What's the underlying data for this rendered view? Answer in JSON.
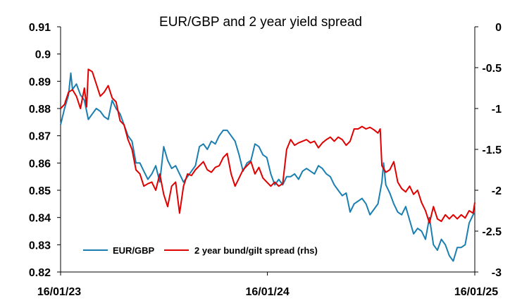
{
  "chart_data": {
    "type": "line",
    "title": "EUR/GBP and 2 year yield spread",
    "x_tick_labels": [
      "16/01/23",
      "16/01/24",
      "16/01/25"
    ],
    "x_range": [
      "2023-01-16",
      "2025-01-16"
    ],
    "y_left": {
      "min": 0.82,
      "max": 0.91,
      "ticks": [
        "0.82",
        "0.83",
        "0.84",
        "0.85",
        "0.86",
        "0.87",
        "0.88",
        "0.89",
        "0.9",
        "0.91"
      ]
    },
    "y_right": {
      "min": -3,
      "max": 0,
      "ticks": [
        "0",
        "-0.5",
        "-1",
        "-1.5",
        "-2",
        "-2.5",
        "-3"
      ]
    },
    "grid": false,
    "legend_position": "bottom-left",
    "series": [
      {
        "name": "EUR/GBP",
        "axis": "left",
        "color": "#1a7fb0",
        "points": [
          [
            "2023-01-16",
            0.874
          ],
          [
            "2023-01-23",
            0.88
          ],
          [
            "2023-01-30",
            0.885
          ],
          [
            "2023-02-03",
            0.893
          ],
          [
            "2023-02-06",
            0.887
          ],
          [
            "2023-02-13",
            0.889
          ],
          [
            "2023-02-20",
            0.885
          ],
          [
            "2023-02-27",
            0.883
          ],
          [
            "2023-03-06",
            0.876
          ],
          [
            "2023-03-13",
            0.878
          ],
          [
            "2023-03-20",
            0.88
          ],
          [
            "2023-03-27",
            0.879
          ],
          [
            "2023-04-03",
            0.877
          ],
          [
            "2023-04-10",
            0.876
          ],
          [
            "2023-04-17",
            0.883
          ],
          [
            "2023-04-24",
            0.88
          ],
          [
            "2023-05-01",
            0.878
          ],
          [
            "2023-05-08",
            0.874
          ],
          [
            "2023-05-15",
            0.87
          ],
          [
            "2023-05-22",
            0.868
          ],
          [
            "2023-05-29",
            0.86
          ],
          [
            "2023-06-05",
            0.86
          ],
          [
            "2023-06-12",
            0.857
          ],
          [
            "2023-06-19",
            0.854
          ],
          [
            "2023-06-26",
            0.856
          ],
          [
            "2023-07-03",
            0.859
          ],
          [
            "2023-07-10",
            0.853
          ],
          [
            "2023-07-17",
            0.866
          ],
          [
            "2023-07-24",
            0.861
          ],
          [
            "2023-07-31",
            0.858
          ],
          [
            "2023-08-07",
            0.859
          ],
          [
            "2023-08-14",
            0.856
          ],
          [
            "2023-08-21",
            0.853
          ],
          [
            "2023-08-28",
            0.855
          ],
          [
            "2023-09-04",
            0.857
          ],
          [
            "2023-09-11",
            0.859
          ],
          [
            "2023-09-18",
            0.866
          ],
          [
            "2023-09-25",
            0.867
          ],
          [
            "2023-10-02",
            0.865
          ],
          [
            "2023-10-09",
            0.868
          ],
          [
            "2023-10-16",
            0.867
          ],
          [
            "2023-10-23",
            0.87
          ],
          [
            "2023-10-30",
            0.872
          ],
          [
            "2023-11-06",
            0.872
          ],
          [
            "2023-11-13",
            0.87
          ],
          [
            "2023-11-20",
            0.868
          ],
          [
            "2023-11-27",
            0.863
          ],
          [
            "2023-12-04",
            0.857
          ],
          [
            "2023-12-11",
            0.86
          ],
          [
            "2023-12-18",
            0.861
          ],
          [
            "2023-12-25",
            0.867
          ],
          [
            "2024-01-01",
            0.866
          ],
          [
            "2024-01-08",
            0.863
          ],
          [
            "2024-01-15",
            0.862
          ],
          [
            "2024-01-22",
            0.856
          ],
          [
            "2024-01-29",
            0.852
          ],
          [
            "2024-02-05",
            0.854
          ],
          [
            "2024-02-12",
            0.852
          ],
          [
            "2024-02-19",
            0.855
          ],
          [
            "2024-02-26",
            0.855
          ],
          [
            "2024-03-04",
            0.856
          ],
          [
            "2024-03-11",
            0.854
          ],
          [
            "2024-03-18",
            0.857
          ],
          [
            "2024-03-25",
            0.858
          ],
          [
            "2024-04-01",
            0.857
          ],
          [
            "2024-04-08",
            0.856
          ],
          [
            "2024-04-15",
            0.859
          ],
          [
            "2024-04-22",
            0.858
          ],
          [
            "2024-04-29",
            0.856
          ],
          [
            "2024-05-06",
            0.855
          ],
          [
            "2024-05-13",
            0.852
          ],
          [
            "2024-05-20",
            0.85
          ],
          [
            "2024-05-27",
            0.848
          ],
          [
            "2024-06-03",
            0.849
          ],
          [
            "2024-06-10",
            0.842
          ],
          [
            "2024-06-17",
            0.845
          ],
          [
            "2024-06-24",
            0.846
          ],
          [
            "2024-07-01",
            0.847
          ],
          [
            "2024-07-08",
            0.845
          ],
          [
            "2024-07-15",
            0.841
          ],
          [
            "2024-07-22",
            0.843
          ],
          [
            "2024-07-29",
            0.845
          ],
          [
            "2024-08-05",
            0.853
          ],
          [
            "2024-08-08",
            0.86
          ],
          [
            "2024-08-12",
            0.852
          ],
          [
            "2024-08-19",
            0.849
          ],
          [
            "2024-08-26",
            0.845
          ],
          [
            "2024-09-02",
            0.842
          ],
          [
            "2024-09-09",
            0.841
          ],
          [
            "2024-09-16",
            0.844
          ],
          [
            "2024-09-23",
            0.839
          ],
          [
            "2024-09-30",
            0.834
          ],
          [
            "2024-10-07",
            0.836
          ],
          [
            "2024-10-14",
            0.835
          ],
          [
            "2024-10-21",
            0.832
          ],
          [
            "2024-10-28",
            0.84
          ],
          [
            "2024-11-04",
            0.83
          ],
          [
            "2024-11-11",
            0.828
          ],
          [
            "2024-11-18",
            0.832
          ],
          [
            "2024-11-25",
            0.83
          ],
          [
            "2024-12-02",
            0.826
          ],
          [
            "2024-12-09",
            0.824
          ],
          [
            "2024-12-16",
            0.829
          ],
          [
            "2024-12-23",
            0.829
          ],
          [
            "2024-12-30",
            0.83
          ],
          [
            "2025-01-06",
            0.838
          ],
          [
            "2025-01-13",
            0.841
          ],
          [
            "2025-01-16",
            0.842
          ]
        ]
      },
      {
        "name": "2 year bund/gilt spread (rhs)",
        "axis": "right",
        "color": "#e00000",
        "points": [
          [
            "2023-01-16",
            -1.0
          ],
          [
            "2023-01-23",
            -0.95
          ],
          [
            "2023-01-30",
            -0.8
          ],
          [
            "2023-02-06",
            -0.77
          ],
          [
            "2023-02-13",
            -0.85
          ],
          [
            "2023-02-20",
            -1.0
          ],
          [
            "2023-02-27",
            -0.75
          ],
          [
            "2023-03-03",
            -0.98
          ],
          [
            "2023-03-06",
            -0.52
          ],
          [
            "2023-03-13",
            -0.55
          ],
          [
            "2023-03-20",
            -0.7
          ],
          [
            "2023-03-27",
            -0.85
          ],
          [
            "2023-04-03",
            -0.8
          ],
          [
            "2023-04-10",
            -0.72
          ],
          [
            "2023-04-17",
            -0.87
          ],
          [
            "2023-04-24",
            -0.92
          ],
          [
            "2023-05-01",
            -1.15
          ],
          [
            "2023-05-08",
            -1.2
          ],
          [
            "2023-05-15",
            -1.38
          ],
          [
            "2023-05-22",
            -1.5
          ],
          [
            "2023-05-29",
            -1.75
          ],
          [
            "2023-06-05",
            -1.8
          ],
          [
            "2023-06-12",
            -1.95
          ],
          [
            "2023-06-19",
            -1.92
          ],
          [
            "2023-06-26",
            -1.9
          ],
          [
            "2023-07-03",
            -2.0
          ],
          [
            "2023-07-10",
            -1.8
          ],
          [
            "2023-07-17",
            -2.05
          ],
          [
            "2023-07-24",
            -2.2
          ],
          [
            "2023-07-31",
            -1.95
          ],
          [
            "2023-08-07",
            -1.9
          ],
          [
            "2023-08-14",
            -2.28
          ],
          [
            "2023-08-21",
            -1.95
          ],
          [
            "2023-08-28",
            -1.8
          ],
          [
            "2023-09-04",
            -1.82
          ],
          [
            "2023-09-11",
            -1.75
          ],
          [
            "2023-09-18",
            -1.7
          ],
          [
            "2023-09-25",
            -1.65
          ],
          [
            "2023-10-02",
            -1.75
          ],
          [
            "2023-10-09",
            -1.78
          ],
          [
            "2023-10-16",
            -1.72
          ],
          [
            "2023-10-23",
            -1.7
          ],
          [
            "2023-10-30",
            -1.6
          ],
          [
            "2023-11-06",
            -1.55
          ],
          [
            "2023-11-13",
            -1.8
          ],
          [
            "2023-11-20",
            -1.95
          ],
          [
            "2023-11-27",
            -1.85
          ],
          [
            "2023-12-04",
            -1.75
          ],
          [
            "2023-12-11",
            -1.7
          ],
          [
            "2023-12-18",
            -1.65
          ],
          [
            "2023-12-25",
            -1.8
          ],
          [
            "2024-01-01",
            -1.72
          ],
          [
            "2024-01-08",
            -1.85
          ],
          [
            "2024-01-15",
            -1.9
          ],
          [
            "2024-01-22",
            -1.95
          ],
          [
            "2024-01-29",
            -1.9
          ],
          [
            "2024-02-05",
            -1.95
          ],
          [
            "2024-02-12",
            -1.92
          ],
          [
            "2024-02-19",
            -1.5
          ],
          [
            "2024-02-26",
            -1.38
          ],
          [
            "2024-03-04",
            -1.45
          ],
          [
            "2024-03-11",
            -1.42
          ],
          [
            "2024-03-18",
            -1.4
          ],
          [
            "2024-03-25",
            -1.38
          ],
          [
            "2024-04-01",
            -1.42
          ],
          [
            "2024-04-08",
            -1.4
          ],
          [
            "2024-04-15",
            -1.48
          ],
          [
            "2024-04-22",
            -1.42
          ],
          [
            "2024-04-29",
            -1.38
          ],
          [
            "2024-05-06",
            -1.35
          ],
          [
            "2024-05-13",
            -1.4
          ],
          [
            "2024-05-20",
            -1.35
          ],
          [
            "2024-05-27",
            -1.38
          ],
          [
            "2024-06-03",
            -1.45
          ],
          [
            "2024-06-10",
            -1.4
          ],
          [
            "2024-06-17",
            -1.25
          ],
          [
            "2024-06-24",
            -1.25
          ],
          [
            "2024-07-01",
            -1.22
          ],
          [
            "2024-07-08",
            -1.25
          ],
          [
            "2024-07-15",
            -1.23
          ],
          [
            "2024-07-22",
            -1.26
          ],
          [
            "2024-07-29",
            -1.3
          ],
          [
            "2024-08-02",
            -1.25
          ],
          [
            "2024-08-05",
            -1.7
          ],
          [
            "2024-08-12",
            -1.78
          ],
          [
            "2024-08-19",
            -1.75
          ],
          [
            "2024-08-26",
            -1.65
          ],
          [
            "2024-09-02",
            -1.9
          ],
          [
            "2024-09-09",
            -1.98
          ],
          [
            "2024-09-16",
            -2.02
          ],
          [
            "2024-09-23",
            -1.95
          ],
          [
            "2024-09-30",
            -2.05
          ],
          [
            "2024-10-07",
            -2.0
          ],
          [
            "2024-10-14",
            -2.15
          ],
          [
            "2024-10-21",
            -2.25
          ],
          [
            "2024-10-28",
            -2.4
          ],
          [
            "2024-11-04",
            -2.2
          ],
          [
            "2024-11-11",
            -2.35
          ],
          [
            "2024-11-18",
            -2.38
          ],
          [
            "2024-11-25",
            -2.3
          ],
          [
            "2024-12-02",
            -2.35
          ],
          [
            "2024-12-09",
            -2.3
          ],
          [
            "2024-12-16",
            -2.35
          ],
          [
            "2024-12-23",
            -2.3
          ],
          [
            "2024-12-30",
            -2.34
          ],
          [
            "2025-01-06",
            -2.25
          ],
          [
            "2025-01-13",
            -2.28
          ],
          [
            "2025-01-16",
            -2.15
          ]
        ]
      }
    ]
  }
}
